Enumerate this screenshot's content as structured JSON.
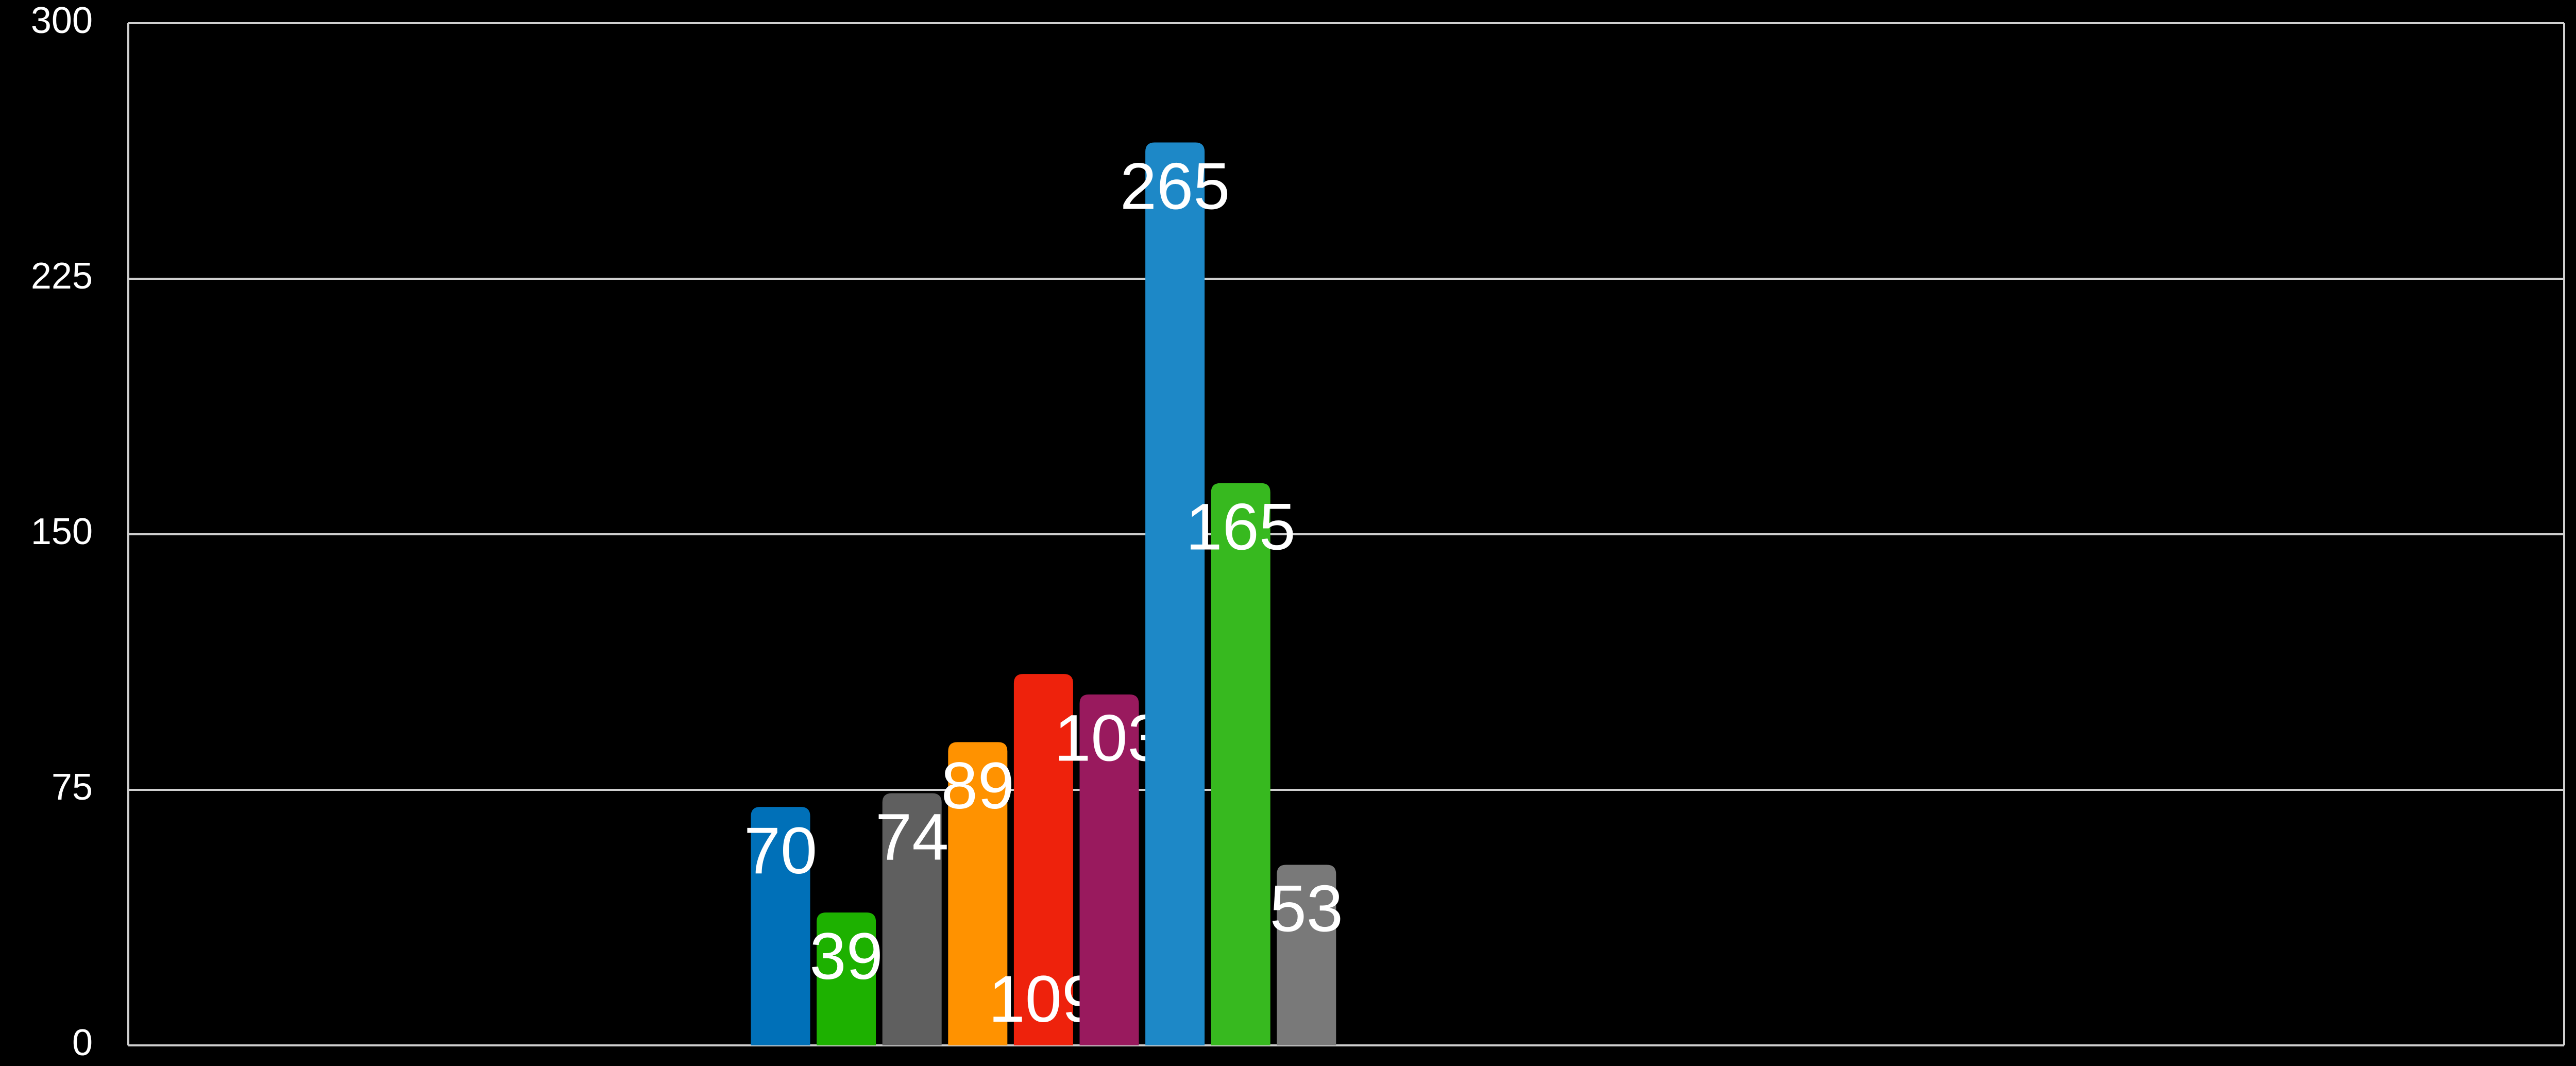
{
  "chart_data": {
    "type": "bar",
    "categories": [
      null,
      null,
      null,
      null,
      null,
      null,
      null,
      null,
      null
    ],
    "values": [
      70,
      39,
      74,
      89,
      109,
      103,
      265,
      165,
      53
    ],
    "colors": [
      "#0070b8",
      "#1db100",
      "#5f5f5f",
      "#ff9200",
      "#ee220c",
      "#991a5e",
      "#1d88c7",
      "#37b91f",
      "#797979"
    ],
    "ylim": [
      0,
      300
    ],
    "yticks": [
      0,
      75,
      150,
      225,
      300
    ],
    "grid": true
  }
}
